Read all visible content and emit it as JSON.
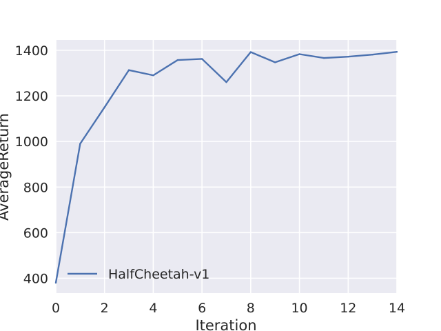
{
  "chart_data": {
    "type": "line",
    "title": "",
    "xlabel": "Iteration",
    "ylabel": "AverageReturn",
    "xlim": [
      0,
      14
    ],
    "ylim": [
      335,
      1445
    ],
    "x_ticks": [
      0,
      2,
      4,
      6,
      8,
      10,
      12,
      14
    ],
    "y_ticks": [
      400,
      600,
      800,
      1000,
      1200,
      1400
    ],
    "grid": true,
    "legend_position": "lower-left",
    "series": [
      {
        "name": "HalfCheetah-v1",
        "color": "#4c72b0",
        "x": [
          0,
          1,
          2,
          3,
          4,
          5,
          6,
          7,
          8,
          9,
          10,
          11,
          12,
          13,
          14
        ],
        "y": [
          380,
          990,
          1150,
          1313,
          1290,
          1357,
          1362,
          1260,
          1392,
          1347,
          1383,
          1366,
          1372,
          1381,
          1393
        ]
      }
    ]
  }
}
